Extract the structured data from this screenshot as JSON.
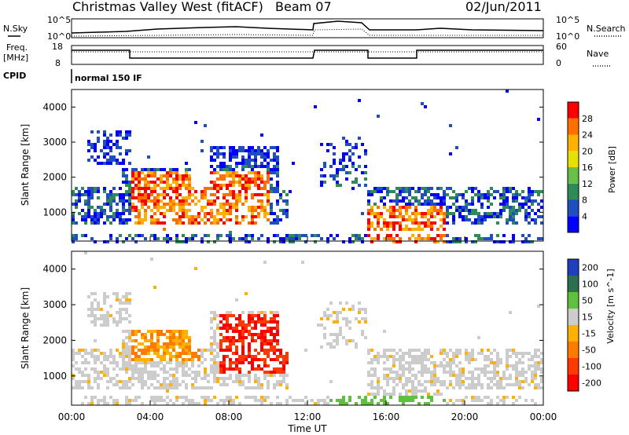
{
  "header": {
    "station": "Christmas Valley West (fitACF)",
    "beam": "Beam 07",
    "date": "02/Jun/2011"
  },
  "noise_panel": {
    "left_label": "N.Sky",
    "left_ticks": [
      "10^5",
      "10^0"
    ],
    "right_label": "N.Search",
    "right_ticks": [
      "10^5",
      "10^0"
    ]
  },
  "freq_panel": {
    "left_label_1": "Freq.",
    "left_label_2": "[MHz]",
    "left_ticks": [
      "18",
      "8"
    ],
    "right_label": "Nave",
    "right_ticks": [
      "60",
      "0"
    ]
  },
  "cpid": {
    "label": "CPID",
    "value": "normal 150 IF"
  },
  "chart_data": [
    {
      "type": "heatmap",
      "title": "",
      "ylabel": "Slant Range [km]",
      "xlabel": "Time UT",
      "x_ticks": [
        "00:00",
        "04:00",
        "08:00",
        "12:00",
        "16:00",
        "20:00",
        "00:00"
      ],
      "y_ticks": [
        "1000",
        "2000",
        "3000",
        "4000"
      ],
      "colorbar_label": "Power [dB]",
      "colorbar_ticks": [
        "4",
        "8",
        "12",
        "16",
        "20",
        "24",
        "28"
      ],
      "colors": [
        "#0000ff",
        "#1f4fbf",
        "#2e8b57",
        "#66c04a",
        "#e8e000",
        "#ffb000",
        "#ff7000",
        "#ff0000"
      ],
      "ylim": [
        180,
        4500
      ],
      "xlim_hours": [
        0,
        24
      ]
    },
    {
      "type": "heatmap",
      "title": "",
      "ylabel": "Slant Range [km]",
      "xlabel": "Time UT",
      "x_ticks": [
        "00:00",
        "04:00",
        "08:00",
        "12:00",
        "16:00",
        "20:00",
        "00:00"
      ],
      "y_ticks": [
        "1000",
        "2000",
        "3000",
        "4000"
      ],
      "colorbar_label": "Velocity [m s^-1]",
      "colorbar_ticks": [
        "200",
        "100",
        "50",
        "15",
        "-15",
        "-50",
        "-100",
        "-200"
      ],
      "colors": [
        "#1f3fbf",
        "#2e6f4f",
        "#5fbf3f",
        "#cccccc",
        "#ffb000",
        "#ff7a00",
        "#ff3a00",
        "#ff0000"
      ],
      "ylim": [
        180,
        4500
      ],
      "xlim_hours": [
        0,
        24
      ]
    }
  ]
}
